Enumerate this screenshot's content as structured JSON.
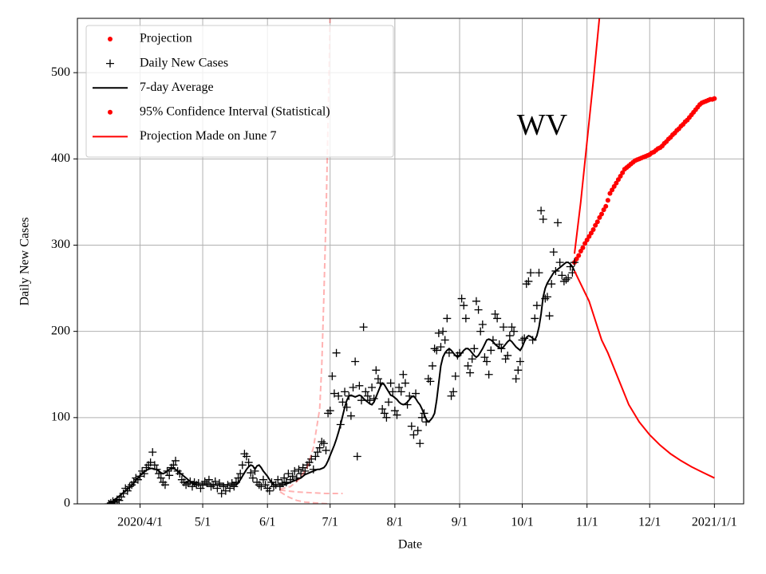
{
  "chart_data": {
    "type": "scatter",
    "xlabel": "Date",
    "ylabel": "Daily New Cases",
    "xlim": [
      61,
      380
    ],
    "ylim": [
      0,
      563
    ],
    "xticks": [
      {
        "value": 91,
        "label": "2020/4/1"
      },
      {
        "value": 121,
        "label": "5/1"
      },
      {
        "value": 152,
        "label": "6/1"
      },
      {
        "value": 182,
        "label": "7/1"
      },
      {
        "value": 213,
        "label": "8/1"
      },
      {
        "value": 244,
        "label": "9/1"
      },
      {
        "value": 274,
        "label": "10/1"
      },
      {
        "value": 305,
        "label": "11/1"
      },
      {
        "value": 335,
        "label": "12/1"
      },
      {
        "value": 366,
        "label": "2021/1/1"
      }
    ],
    "yticks": [
      0,
      100,
      200,
      300,
      400,
      500
    ],
    "grid": true,
    "legend": "upper left",
    "annotations": [
      {
        "text": "WV",
        "x": 283.5,
        "y": 436
      }
    ],
    "series": [
      {
        "name": "Projection",
        "color": "#ff0000",
        "marker": "dot",
        "x": [
          299,
          300,
          301,
          302,
          303,
          304,
          305,
          306,
          307,
          308,
          309,
          310,
          311,
          312,
          313,
          314,
          315,
          316,
          317,
          318,
          319,
          320,
          321,
          322,
          323,
          324,
          325,
          326,
          327,
          328,
          329,
          330,
          331,
          332,
          333,
          334,
          335,
          336,
          337,
          338,
          339,
          340,
          341,
          342,
          343,
          344,
          345,
          346,
          347,
          348,
          349,
          350,
          351,
          352,
          353,
          354,
          355,
          356,
          357,
          358,
          359,
          360,
          361,
          362,
          363,
          364,
          365,
          366
        ],
        "values": [
          280,
          284,
          288,
          293,
          297,
          302,
          306,
          310,
          314,
          318,
          323,
          327,
          332,
          336,
          341,
          345,
          352,
          360,
          364,
          368,
          372,
          376,
          380,
          384,
          388,
          390,
          392,
          394,
          396,
          398,
          399,
          400,
          401,
          402,
          403,
          404,
          405,
          407,
          408,
          410,
          412,
          413,
          415,
          418,
          420,
          423,
          425,
          428,
          430,
          433,
          435,
          438,
          440,
          443,
          445,
          448,
          451,
          454,
          457,
          460,
          463,
          465,
          466,
          467,
          468,
          469,
          469,
          470
        ]
      },
      {
        "name": "Daily New Cases",
        "color": "#000000",
        "marker": "plus",
        "x": [
          76,
          77,
          78,
          79,
          80,
          81,
          82,
          83,
          84,
          85,
          86,
          87,
          88,
          89,
          90,
          91,
          92,
          93,
          94,
          95,
          96,
          97,
          98,
          99,
          100,
          101,
          102,
          103,
          104,
          105,
          106,
          107,
          108,
          109,
          110,
          111,
          112,
          113,
          114,
          115,
          116,
          117,
          118,
          119,
          120,
          121,
          122,
          123,
          124,
          125,
          126,
          127,
          128,
          129,
          130,
          131,
          132,
          133,
          134,
          135,
          136,
          137,
          138,
          139,
          140,
          141,
          142,
          143,
          144,
          145,
          146,
          147,
          148,
          149,
          150,
          151,
          152,
          153,
          154,
          155,
          156,
          157,
          158,
          159,
          160,
          161,
          162,
          163,
          164,
          165,
          166,
          167,
          168,
          169,
          170,
          171,
          172,
          173,
          174,
          175,
          176,
          177,
          178,
          179,
          180,
          181,
          182,
          183,
          184,
          185,
          186,
          187,
          188,
          189,
          190,
          191,
          192,
          193,
          194,
          195,
          196,
          197,
          198,
          199,
          200,
          201,
          202,
          203,
          204,
          205,
          206,
          207,
          208,
          209,
          210,
          211,
          212,
          213,
          214,
          215,
          216,
          217,
          218,
          219,
          220,
          221,
          222,
          223,
          224,
          225,
          226,
          227,
          228,
          229,
          230,
          231,
          232,
          233,
          234,
          235,
          236,
          237,
          238,
          239,
          240,
          241,
          242,
          243,
          244,
          245,
          246,
          247,
          248,
          249,
          250,
          251,
          252,
          253,
          254,
          255,
          256,
          257,
          258,
          259,
          260,
          261,
          262,
          263,
          264,
          265,
          266,
          267,
          268,
          269,
          270,
          271,
          272,
          273,
          274,
          275,
          276,
          277,
          278,
          279,
          280,
          281,
          282,
          283,
          284,
          285,
          286,
          287,
          288,
          289,
          290,
          291,
          292,
          293,
          294,
          295,
          296,
          297,
          298,
          299
        ],
        "values": [
          0,
          1,
          3,
          2,
          5,
          4,
          8,
          12,
          18,
          15,
          20,
          22,
          25,
          30,
          28,
          32,
          38,
          35,
          42,
          45,
          48,
          60,
          45,
          40,
          35,
          30,
          25,
          22,
          38,
          33,
          42,
          45,
          50,
          38,
          35,
          28,
          25,
          22,
          24,
          26,
          20,
          25,
          22,
          24,
          18,
          22,
          26,
          24,
          28,
          20,
          22,
          26,
          18,
          24,
          12,
          20,
          15,
          22,
          18,
          24,
          20,
          25,
          30,
          35,
          45,
          58,
          55,
          48,
          36,
          30,
          38,
          25,
          22,
          20,
          28,
          22,
          18,
          15,
          25,
          20,
          22,
          28,
          20,
          24,
          30,
          25,
          35,
          28,
          32,
          38,
          30,
          40,
          35,
          42,
          38,
          45,
          48,
          52,
          40,
          55,
          60,
          65,
          72,
          70,
          62,
          105,
          108,
          148,
          128,
          175,
          125,
          92,
          118,
          130,
          112,
          125,
          102,
          135,
          165,
          55,
          137,
          120,
          205,
          130,
          125,
          120,
          135,
          122,
          155,
          145,
          140,
          110,
          105,
          100,
          118,
          140,
          130,
          108,
          103,
          135,
          130,
          150,
          140,
          115,
          125,
          90,
          80,
          128,
          85,
          70,
          100,
          105,
          95,
          145,
          142,
          160,
          180,
          178,
          198,
          182,
          200,
          190,
          215,
          175,
          125,
          130,
          148,
          172,
          175,
          238,
          230,
          215,
          160,
          152,
          168,
          180,
          235,
          225,
          200,
          208,
          170,
          165,
          150,
          178,
          190,
          220,
          215,
          185,
          180,
          205,
          168,
          172,
          195,
          205,
          200,
          145,
          155,
          165,
          190,
          192,
          255,
          258,
          268,
          190,
          215,
          230,
          268,
          340,
          330,
          238,
          240,
          218,
          255,
          292,
          270,
          326,
          280,
          265,
          258,
          260,
          262,
          275,
          268,
          280
        ]
      },
      {
        "name": "7-day Average",
        "color": "#000000",
        "marker": "line",
        "x": [
          76,
          77,
          78,
          79,
          80,
          81,
          82,
          83,
          84,
          85,
          86,
          87,
          88,
          89,
          90,
          91,
          92,
          93,
          94,
          95,
          96,
          97,
          98,
          99,
          100,
          101,
          102,
          103,
          104,
          105,
          106,
          107,
          108,
          109,
          110,
          111,
          112,
          113,
          114,
          115,
          116,
          117,
          118,
          119,
          120,
          121,
          122,
          123,
          124,
          125,
          126,
          127,
          128,
          129,
          130,
          131,
          132,
          133,
          134,
          135,
          136,
          137,
          138,
          139,
          140,
          141,
          142,
          143,
          144,
          145,
          146,
          147,
          148,
          149,
          150,
          151,
          152,
          153,
          154,
          155,
          156,
          157,
          158,
          159,
          160,
          161,
          162,
          163,
          164,
          165,
          166,
          167,
          168,
          169,
          170,
          171,
          172,
          173,
          174,
          175,
          176,
          177,
          178,
          179,
          180,
          181,
          182,
          183,
          184,
          185,
          186,
          187,
          188,
          189,
          190,
          191,
          192,
          193,
          194,
          195,
          196,
          197,
          198,
          199,
          200,
          201,
          202,
          203,
          204,
          205,
          206,
          207,
          208,
          209,
          210,
          211,
          212,
          213,
          214,
          215,
          216,
          217,
          218,
          219,
          220,
          221,
          222,
          223,
          224,
          225,
          226,
          227,
          228,
          229,
          230,
          231,
          232,
          233,
          234,
          235,
          236,
          237,
          238,
          239,
          240,
          241,
          242,
          243,
          244,
          245,
          246,
          247,
          248,
          249,
          250,
          251,
          252,
          253,
          254,
          255,
          256,
          257,
          258,
          259,
          260,
          261,
          262,
          263,
          264,
          265,
          266,
          267,
          268,
          269,
          270,
          271,
          272,
          273,
          274,
          275,
          276,
          277,
          278,
          279,
          280,
          281,
          282,
          283,
          284,
          285,
          286,
          287,
          288,
          289,
          290,
          291,
          292,
          293,
          294,
          295,
          296,
          297,
          298,
          299
        ],
        "values": [
          1,
          2,
          3,
          5,
          7,
          9,
          11,
          13,
          15,
          17,
          19,
          21,
          24,
          27,
          30,
          33,
          35,
          37,
          39,
          40,
          41,
          41,
          40,
          40,
          38,
          36,
          35,
          36,
          38,
          40,
          41,
          41,
          40,
          38,
          36,
          34,
          32,
          30,
          28,
          26,
          24,
          23,
          22,
          22,
          22,
          22,
          22,
          22,
          22,
          22,
          22,
          22,
          22,
          22,
          22,
          22,
          22,
          22,
          22,
          22,
          22,
          22,
          24,
          28,
          32,
          36,
          40,
          43,
          45,
          44,
          40,
          44,
          45,
          42,
          38,
          35,
          32,
          28,
          25,
          22,
          22,
          22,
          22,
          22,
          22,
          23,
          24,
          25,
          26,
          27,
          28,
          29,
          30,
          32,
          34,
          35,
          36,
          37,
          38,
          39,
          40,
          40,
          41,
          42,
          45,
          50,
          56,
          62,
          68,
          75,
          83,
          92,
          102,
          112,
          120,
          125,
          126,
          125,
          124,
          125,
          126,
          125,
          122,
          120,
          118,
          116,
          115,
          118,
          124,
          130,
          136,
          140,
          138,
          134,
          130,
          126,
          125,
          123,
          121,
          118,
          116,
          115,
          116,
          118,
          121,
          124,
          125,
          122,
          118,
          115,
          110,
          104,
          98,
          95,
          97,
          100,
          105,
          120,
          140,
          160,
          170,
          175,
          178,
          180,
          178,
          175,
          172,
          170,
          172,
          175,
          178,
          180,
          180,
          178,
          175,
          172,
          170,
          172,
          176,
          180,
          185,
          190,
          191,
          190,
          188,
          185,
          183,
          181,
          180,
          182,
          185,
          188,
          190,
          188,
          185,
          182,
          180,
          178,
          182,
          188,
          193,
          195,
          194,
          192,
          190,
          195,
          205,
          220,
          240,
          250,
          256,
          260,
          264,
          268,
          270,
          272,
          274,
          276,
          278,
          280,
          280,
          278,
          275,
          270
        ]
      },
      {
        "name": "95% Confidence Interval (Statistical)",
        "color": "#ff0000",
        "marker": "dot",
        "curves": [
          {
            "x": [
              299,
              302,
              305,
              308,
              311
            ],
            "values": [
              290,
              350,
              420,
              490,
              565
            ]
          },
          {
            "x": [
              299,
              302,
              306,
              310,
              312,
              315,
              320,
              325,
              330,
              335,
              340,
              345,
              350,
              355,
              360,
              366
            ],
            "values": [
              270,
              255,
              235,
              205,
              190,
              175,
              145,
              115,
              95,
              80,
              68,
              58,
              50,
              43,
              37,
              30
            ]
          }
        ]
      },
      {
        "name": "Projection Made on June 7",
        "color": "#ff0000",
        "marker": "line",
        "curve_alpha": 0.3,
        "dashed": true,
        "curves": [
          {
            "x": [
              158,
              163,
              167,
              171,
              174,
              177,
              178,
              179,
              180,
              181,
              182
            ],
            "values": [
              17,
              20,
              28,
              42,
              65,
              110,
              160,
              240,
              330,
              440,
              570
            ]
          },
          {
            "x": [
              158,
              165,
              172,
              180,
              188
            ],
            "values": [
              16,
              14,
              13,
              12,
              12
            ]
          },
          {
            "x": [
              158,
              162,
              166,
              170,
              175,
              181
            ],
            "values": [
              14,
              8,
              4,
              2,
              1,
              0
            ]
          }
        ]
      }
    ]
  }
}
